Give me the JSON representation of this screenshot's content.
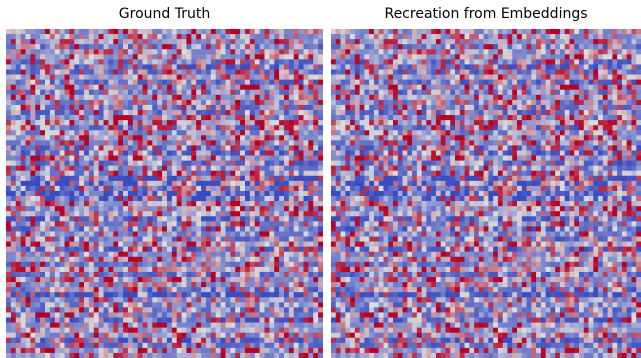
{
  "chart_data": [
    {
      "type": "heatmap",
      "title": "Ground Truth",
      "colormap": "coolwarm",
      "colors": {
        "low": "#3b4cc0",
        "mid": "#dddddd",
        "high": "#b40426"
      },
      "grid": false,
      "axes_visible": false,
      "rows": 65,
      "cols": 65,
      "cell_distribution": "mostly low (blue), with scattered light and warm (red) cells, horizontal banding"
    },
    {
      "type": "heatmap",
      "title": "Recreation from Embeddings",
      "colormap": "coolwarm",
      "colors": {
        "low": "#3b4cc0",
        "mid": "#dddddd",
        "high": "#b40426"
      },
      "grid": false,
      "axes_visible": false,
      "rows": 65,
      "cols": 65,
      "cell_distribution": "visually near-identical to Ground Truth"
    }
  ]
}
